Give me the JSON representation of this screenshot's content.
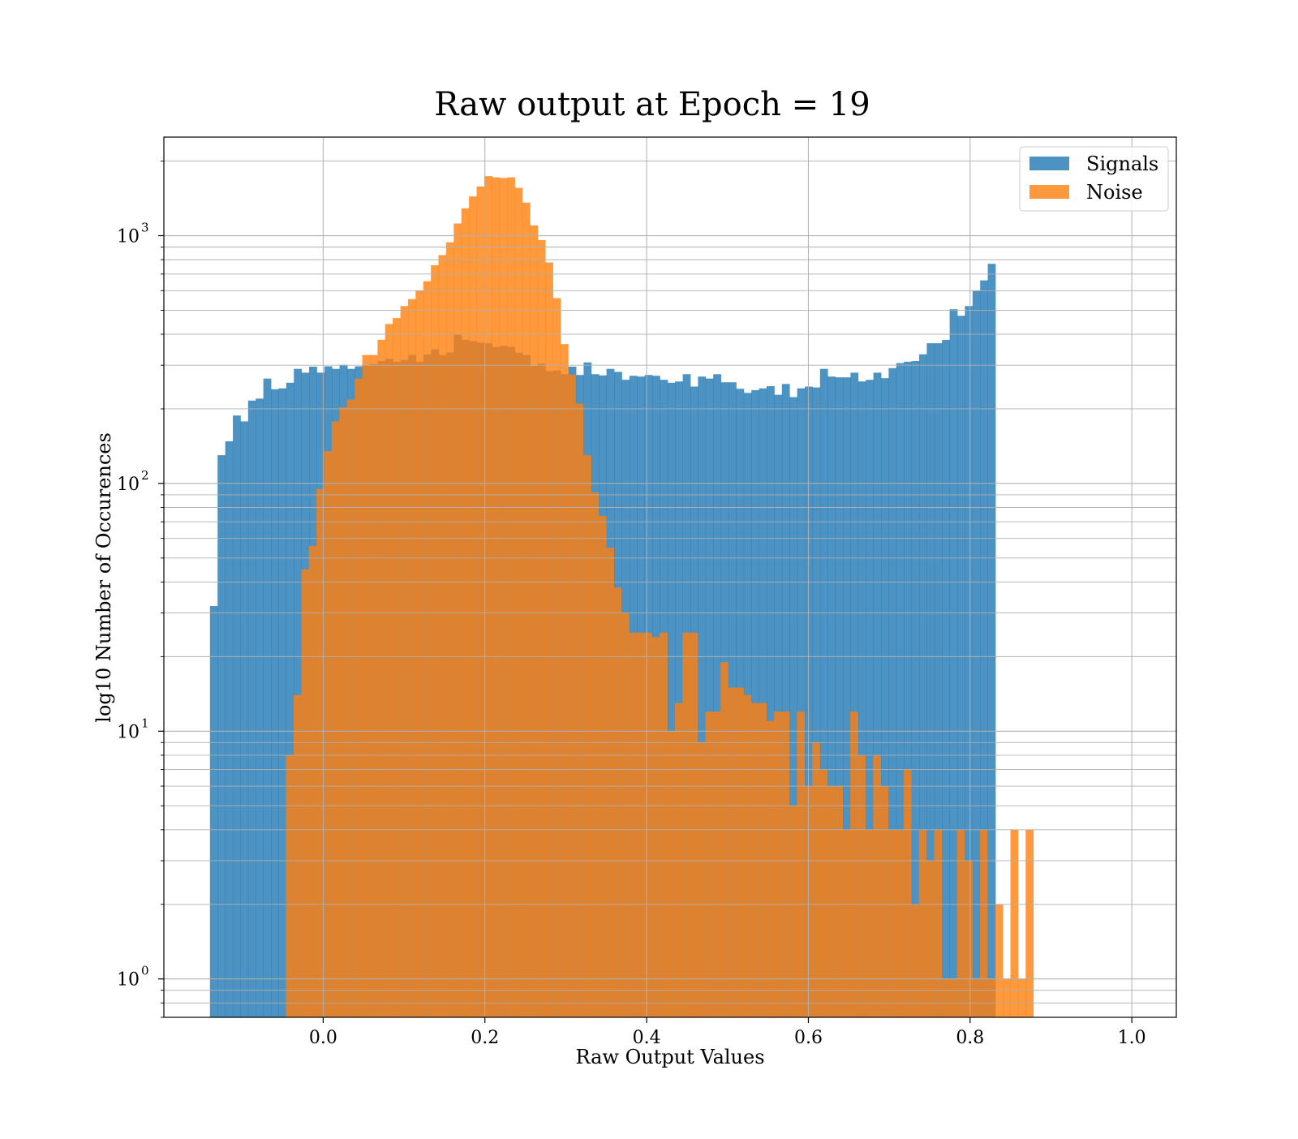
{
  "chart_data": {
    "type": "bar",
    "title": "Raw output at Epoch = 19",
    "xlabel": "Raw Output Values",
    "ylabel": "log10 Number of Occurences",
    "xlim": [
      -0.197,
      1.055
    ],
    "ylim": [
      0.7,
      2500
    ],
    "yscale": "log",
    "grid": true,
    "legend_position": "top-right",
    "bin_width": 0.00943,
    "x_ticks": [
      0.0,
      0.2,
      0.4,
      0.6,
      0.8,
      1.0
    ],
    "x_tick_labels": [
      "0.0",
      "0.2",
      "0.4",
      "0.6",
      "0.8",
      "1.0"
    ],
    "y_ticks": [
      1,
      10,
      100,
      1000
    ],
    "y_tick_labels": [
      {
        "base": "10",
        "exp": "0"
      },
      {
        "base": "10",
        "exp": "1"
      },
      {
        "base": "10",
        "exp": "2"
      },
      {
        "base": "10",
        "exp": "3"
      }
    ],
    "series": [
      {
        "name": "Signals",
        "color": "#1f77b4",
        "opacity": 0.8,
        "bin_start": -0.14,
        "values": [
          32,
          130,
          148,
          188,
          178,
          216,
          220,
          265,
          240,
          242,
          255,
          290,
          280,
          296,
          280,
          297,
          290,
          301,
          290,
          297,
          300,
          303,
          312,
          318,
          310,
          315,
          330,
          310,
          332,
          348,
          330,
          338,
          400,
          380,
          375,
          370,
          368,
          356,
          360,
          356,
          337,
          330,
          298,
          305,
          284,
          286,
          276,
          296,
          274,
          308,
          276,
          273,
          290,
          282,
          262,
          272,
          270,
          274,
          272,
          262,
          255,
          258,
          276,
          246,
          270,
          265,
          276,
          256,
          256,
          241,
          232,
          238,
          242,
          247,
          228,
          252,
          223,
          242,
          246,
          244,
          290,
          270,
          268,
          268,
          280,
          258,
          262,
          280,
          266,
          292,
          306,
          310,
          312,
          332,
          368,
          368,
          380,
          505,
          475,
          520,
          600,
          660,
          770
        ]
      },
      {
        "name": "Noise",
        "color": "#ff7f0e",
        "opacity": 0.8,
        "bin_start": -0.046,
        "values": [
          8,
          14,
          45,
          56,
          95,
          135,
          178,
          203,
          218,
          265,
          330,
          330,
          380,
          440,
          465,
          520,
          555,
          600,
          655,
          760,
          835,
          940,
          1120,
          1290,
          1440,
          1580,
          1740,
          1720,
          1710,
          1720,
          1560,
          1360,
          1100,
          960,
          780,
          560,
          365,
          275,
          210,
          130,
          92,
          74,
          55,
          38,
          30,
          25,
          25,
          25,
          24,
          25,
          10,
          13,
          25,
          25,
          9,
          12,
          12,
          19,
          15,
          15,
          14,
          13,
          13,
          11,
          12,
          12,
          5,
          12,
          6,
          9,
          7,
          6,
          6,
          4,
          12,
          8,
          4,
          8,
          6,
          4,
          4,
          7,
          2,
          4,
          3,
          4,
          1,
          1,
          4,
          3,
          1,
          4,
          1,
          2,
          1,
          4,
          1,
          4
        ]
      }
    ]
  }
}
